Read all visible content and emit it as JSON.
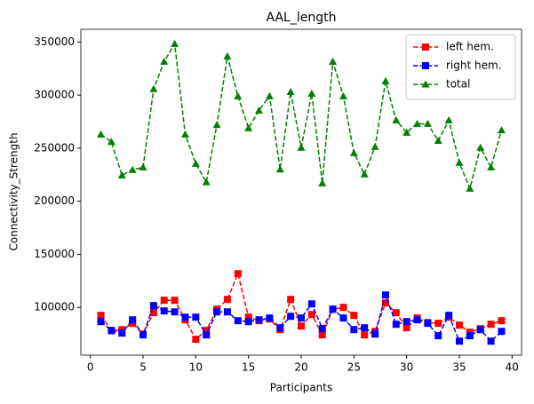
{
  "chart_data": {
    "type": "line",
    "title": "AAL_length",
    "x_label": "Participants",
    "y_label": "Connectivity_Strength",
    "x": [
      1,
      2,
      3,
      4,
      5,
      6,
      7,
      8,
      9,
      10,
      11,
      12,
      13,
      14,
      15,
      16,
      17,
      18,
      19,
      20,
      21,
      22,
      23,
      24,
      25,
      26,
      27,
      28,
      29,
      30,
      31,
      32,
      33,
      34,
      35,
      36,
      37,
      38,
      39
    ],
    "series": [
      {
        "name": "left hem.",
        "color": "#ff0000",
        "marker": "square",
        "values": [
          92500,
          78000,
          79000,
          85000,
          75000,
          95000,
          106700,
          106700,
          88300,
          70000,
          78300,
          98300,
          107500,
          131800,
          90800,
          87500,
          89100,
          79100,
          107500,
          82400,
          93300,
          74100,
          98300,
          100000,
          92500,
          74100,
          77400,
          104200,
          95000,
          80800,
          90000,
          85800,
          85000,
          90800,
          83300,
          76600,
          80000,
          84100,
          87500
        ]
      },
      {
        "name": "right hem.",
        "color": "#0000ff",
        "marker": "square",
        "values": [
          86600,
          78300,
          75800,
          88300,
          74100,
          101700,
          96700,
          95800,
          90800,
          90800,
          74100,
          95800,
          95800,
          87500,
          86600,
          88300,
          90000,
          80800,
          91600,
          90000,
          103300,
          80000,
          98300,
          90000,
          79100,
          80800,
          74900,
          111700,
          84100,
          86600,
          88300,
          85000,
          73300,
          92500,
          68200,
          73300,
          79100,
          68200,
          77400
        ]
      },
      {
        "name": "total",
        "color": "#008000",
        "marker": "triangle",
        "values": [
          263000,
          256000,
          224500,
          229600,
          232000,
          305700,
          331600,
          348300,
          263000,
          235400,
          218000,
          272000,
          336600,
          299000,
          268900,
          285600,
          299000,
          230000,
          303000,
          250500,
          301500,
          217000,
          331600,
          299000,
          245500,
          225400,
          251300,
          313200,
          276400,
          264700,
          273000,
          273000,
          257000,
          276400,
          236300,
          212000,
          250500,
          232000,
          267000
        ]
      }
    ],
    "xlim": [
      -0.9,
      40.9
    ],
    "xticks": [
      0,
      5,
      10,
      15,
      20,
      25,
      30,
      35,
      40
    ],
    "ylim": [
      55000,
      362000
    ],
    "yticks": [
      100000,
      150000,
      200000,
      250000,
      300000,
      350000
    ],
    "legend": "upper right",
    "grid": false
  }
}
